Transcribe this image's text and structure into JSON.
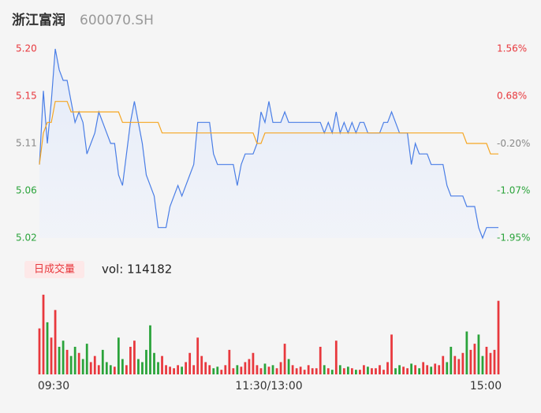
{
  "chart_data": {
    "type": "intraday",
    "title": "浙江富润",
    "subtitle": "600070.SH",
    "volume_label": "日成交量",
    "volume_text": "vol: 114182",
    "xlim": [
      0,
      116
    ],
    "xticks": [
      {
        "value": 0,
        "label": "09:30"
      },
      {
        "value": 58,
        "label": "11:30/13:00"
      },
      {
        "value": 116,
        "label": "15:00"
      }
    ],
    "ylim": [
      5.02,
      5.2
    ],
    "yticks": [
      5.02,
      {
        "value": 5.065,
        "label": "5.06"
      },
      5.11,
      {
        "value": 5.155,
        "label": "5.15"
      },
      {
        "value": 5.2,
        "label": "5.20"
      }
    ],
    "ytick_colors": [
      "#2aa33a",
      "#2aa33a",
      "#888888",
      "#e8383d",
      "#e8383d"
    ],
    "y2lim": [
      -1.95,
      1.56
    ],
    "y2ticks": [
      {
        "value": -1.95,
        "label": "-1.95%"
      },
      {
        "value": -1.07,
        "label": "-1.07%"
      },
      {
        "value": -0.2,
        "label": "-0.20%"
      },
      {
        "value": 0.68,
        "label": "0.68%"
      },
      {
        "value": 1.56,
        "label": "1.56%"
      }
    ],
    "series": [
      {
        "color": "#4a7ee6",
        "values": [
          5.09,
          5.16,
          5.11,
          5.15,
          5.2,
          5.18,
          5.17,
          5.17,
          5.15,
          5.13,
          5.14,
          5.13,
          5.1,
          5.11,
          5.12,
          5.14,
          5.13,
          5.12,
          5.11,
          5.11,
          5.08,
          5.07,
          5.1,
          5.13,
          5.15,
          5.13,
          5.11,
          5.08,
          5.07,
          5.06,
          5.03,
          5.03,
          5.03,
          5.05,
          5.06,
          5.07,
          5.06,
          5.07,
          5.08,
          5.09,
          5.13,
          5.13,
          5.13,
          5.13,
          5.1,
          5.09,
          5.09,
          5.09,
          5.09,
          5.09,
          5.07,
          5.09,
          5.1,
          5.1,
          5.1,
          5.11,
          5.14,
          5.13,
          5.15,
          5.13,
          5.13,
          5.13,
          5.14,
          5.13,
          5.13,
          5.13,
          5.13,
          5.13,
          5.13,
          5.13,
          5.13,
          5.13,
          5.12,
          5.13,
          5.12,
          5.14,
          5.12,
          5.13,
          5.12,
          5.13,
          5.12,
          5.13,
          5.13,
          5.12,
          5.12,
          5.12,
          5.12,
          5.13,
          5.13,
          5.14,
          5.13,
          5.12,
          5.12,
          5.12,
          5.09,
          5.11,
          5.1,
          5.1,
          5.1,
          5.09,
          5.09,
          5.09,
          5.09,
          5.07,
          5.06,
          5.06,
          5.06,
          5.06,
          5.05,
          5.05,
          5.05,
          5.03,
          5.02,
          5.03,
          5.03,
          5.03,
          5.03
        ]
      },
      {
        "color": "#f5a623",
        "values": [
          5.09,
          5.12,
          5.13,
          5.13,
          5.15,
          5.15,
          5.15,
          5.15,
          5.14,
          5.14,
          5.14,
          5.14,
          5.14,
          5.14,
          5.14,
          5.14,
          5.14,
          5.14,
          5.14,
          5.14,
          5.14,
          5.13,
          5.13,
          5.13,
          5.13,
          5.13,
          5.13,
          5.13,
          5.13,
          5.13,
          5.13,
          5.12,
          5.12,
          5.12,
          5.12,
          5.12,
          5.12,
          5.12,
          5.12,
          5.12,
          5.12,
          5.12,
          5.12,
          5.12,
          5.12,
          5.12,
          5.12,
          5.12,
          5.12,
          5.12,
          5.12,
          5.12,
          5.12,
          5.12,
          5.12,
          5.11,
          5.11,
          5.12,
          5.12,
          5.12,
          5.12,
          5.12,
          5.12,
          5.12,
          5.12,
          5.12,
          5.12,
          5.12,
          5.12,
          5.12,
          5.12,
          5.12,
          5.12,
          5.12,
          5.12,
          5.12,
          5.12,
          5.12,
          5.12,
          5.12,
          5.12,
          5.12,
          5.12,
          5.12,
          5.12,
          5.12,
          5.12,
          5.12,
          5.12,
          5.12,
          5.12,
          5.12,
          5.12,
          5.12,
          5.12,
          5.12,
          5.12,
          5.12,
          5.12,
          5.12,
          5.12,
          5.12,
          5.12,
          5.12,
          5.12,
          5.12,
          5.12,
          5.12,
          5.11,
          5.11,
          5.11,
          5.11,
          5.11,
          5.11,
          5.1,
          5.1,
          5.1
        ]
      }
    ],
    "volume": {
      "up_color": "#e8383d",
      "down_color": "#2aa33a",
      "ylim": [
        0,
        2700
      ],
      "values": [
        1500,
        2600,
        1700,
        1200,
        2100,
        900,
        1100,
        800,
        600,
        900,
        700,
        500,
        1000,
        400,
        600,
        300,
        800,
        400,
        300,
        250,
        1200,
        500,
        300,
        900,
        1100,
        500,
        400,
        800,
        1600,
        700,
        400,
        600,
        300,
        250,
        200,
        300,
        250,
        400,
        700,
        300,
        1200,
        600,
        400,
        300,
        200,
        250,
        150,
        300,
        800,
        200,
        300,
        250,
        400,
        500,
        700,
        300,
        200,
        350,
        250,
        300,
        200,
        400,
        1000,
        500,
        300,
        200,
        250,
        150,
        300,
        200,
        200,
        900,
        300,
        200,
        150,
        1100,
        300,
        200,
        250,
        200,
        150,
        150,
        300,
        250,
        200,
        200,
        300,
        150,
        400,
        1300,
        200,
        300,
        250,
        200,
        350,
        300,
        200,
        400,
        300,
        250,
        350,
        300,
        600,
        400,
        900,
        600,
        500,
        700,
        1400,
        800,
        1000,
        1300,
        600,
        900,
        700,
        800,
        2400
      ]
    }
  }
}
